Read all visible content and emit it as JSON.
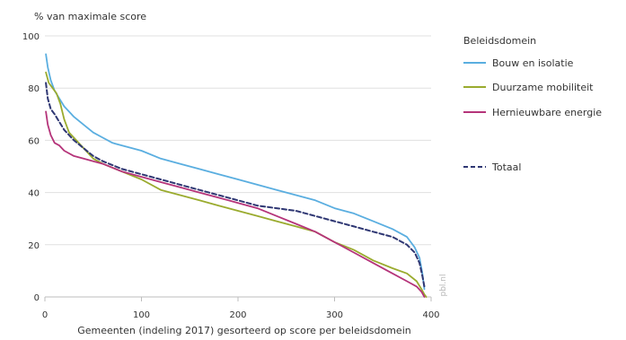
{
  "chart_data": {
    "type": "line",
    "ylabel": "% van maximale score",
    "xlabel": "Gemeenten (indeling 2017) gesorteerd op score per beleidsdomein",
    "xlim": [
      0,
      400
    ],
    "ylim": [
      0,
      100
    ],
    "xticks": [
      0,
      100,
      200,
      300,
      400
    ],
    "yticks": [
      0,
      20,
      40,
      60,
      80,
      100
    ],
    "legend_title": "Beleidsdomein",
    "legend_position": "right",
    "source_label": "pbl.nl",
    "series": [
      {
        "name": "Bouw en isolatie",
        "color": "#5aaee0",
        "dash": false,
        "x": [
          1,
          3,
          6,
          10,
          15,
          20,
          30,
          40,
          50,
          60,
          70,
          80,
          90,
          100,
          120,
          140,
          160,
          180,
          200,
          220,
          240,
          260,
          280,
          300,
          320,
          340,
          360,
          375,
          383,
          388,
          391,
          393
        ],
        "y": [
          93,
          88,
          83,
          79,
          76,
          73,
          69,
          66,
          63,
          61,
          59,
          58,
          57,
          56,
          53,
          51,
          49,
          47,
          45,
          43,
          41,
          39,
          37,
          34,
          32,
          29,
          26,
          23,
          19,
          15,
          9,
          3
        ]
      },
      {
        "name": "Duurzame mobiliteit",
        "color": "#9aab2e",
        "dash": false,
        "x": [
          1,
          4,
          8,
          12,
          16,
          20,
          25,
          30,
          40,
          50,
          60,
          80,
          100,
          120,
          140,
          160,
          180,
          200,
          220,
          240,
          260,
          280,
          300,
          320,
          340,
          360,
          375,
          385,
          390,
          393,
          395
        ],
        "y": [
          86,
          82,
          80,
          78,
          74,
          68,
          63,
          61,
          57,
          53,
          51,
          48,
          45,
          41,
          39,
          37,
          35,
          33,
          31,
          29,
          27,
          25,
          21,
          18,
          14,
          11,
          9,
          6,
          3,
          1,
          0
        ]
      },
      {
        "name": "Hernieuwbare energie",
        "color": "#b5347a",
        "dash": false,
        "x": [
          1,
          3,
          6,
          10,
          15,
          20,
          30,
          40,
          50,
          60,
          80,
          100,
          120,
          140,
          160,
          180,
          200,
          220,
          240,
          260,
          280,
          300,
          320,
          340,
          360,
          375,
          385,
          390,
          393
        ],
        "y": [
          71,
          66,
          62,
          59,
          58,
          56,
          54,
          53,
          52,
          51,
          48,
          46,
          44,
          42,
          40,
          38,
          36,
          34,
          31,
          28,
          25,
          21,
          17,
          13,
          9,
          6,
          4,
          2,
          0
        ]
      },
      {
        "name": "Totaal",
        "color": "#2f3773",
        "dash": true,
        "x": [
          1,
          3,
          6,
          10,
          15,
          20,
          30,
          40,
          50,
          60,
          80,
          100,
          120,
          140,
          160,
          180,
          200,
          220,
          240,
          260,
          280,
          300,
          320,
          340,
          360,
          375,
          383,
          388,
          391,
          393
        ],
        "y": [
          82,
          76,
          72,
          70,
          67,
          64,
          60,
          57,
          54,
          52,
          49,
          47,
          45,
          43,
          41,
          39,
          37,
          35,
          34,
          33,
          31,
          29,
          27,
          25,
          23,
          20,
          17,
          13,
          8,
          4
        ]
      }
    ]
  }
}
